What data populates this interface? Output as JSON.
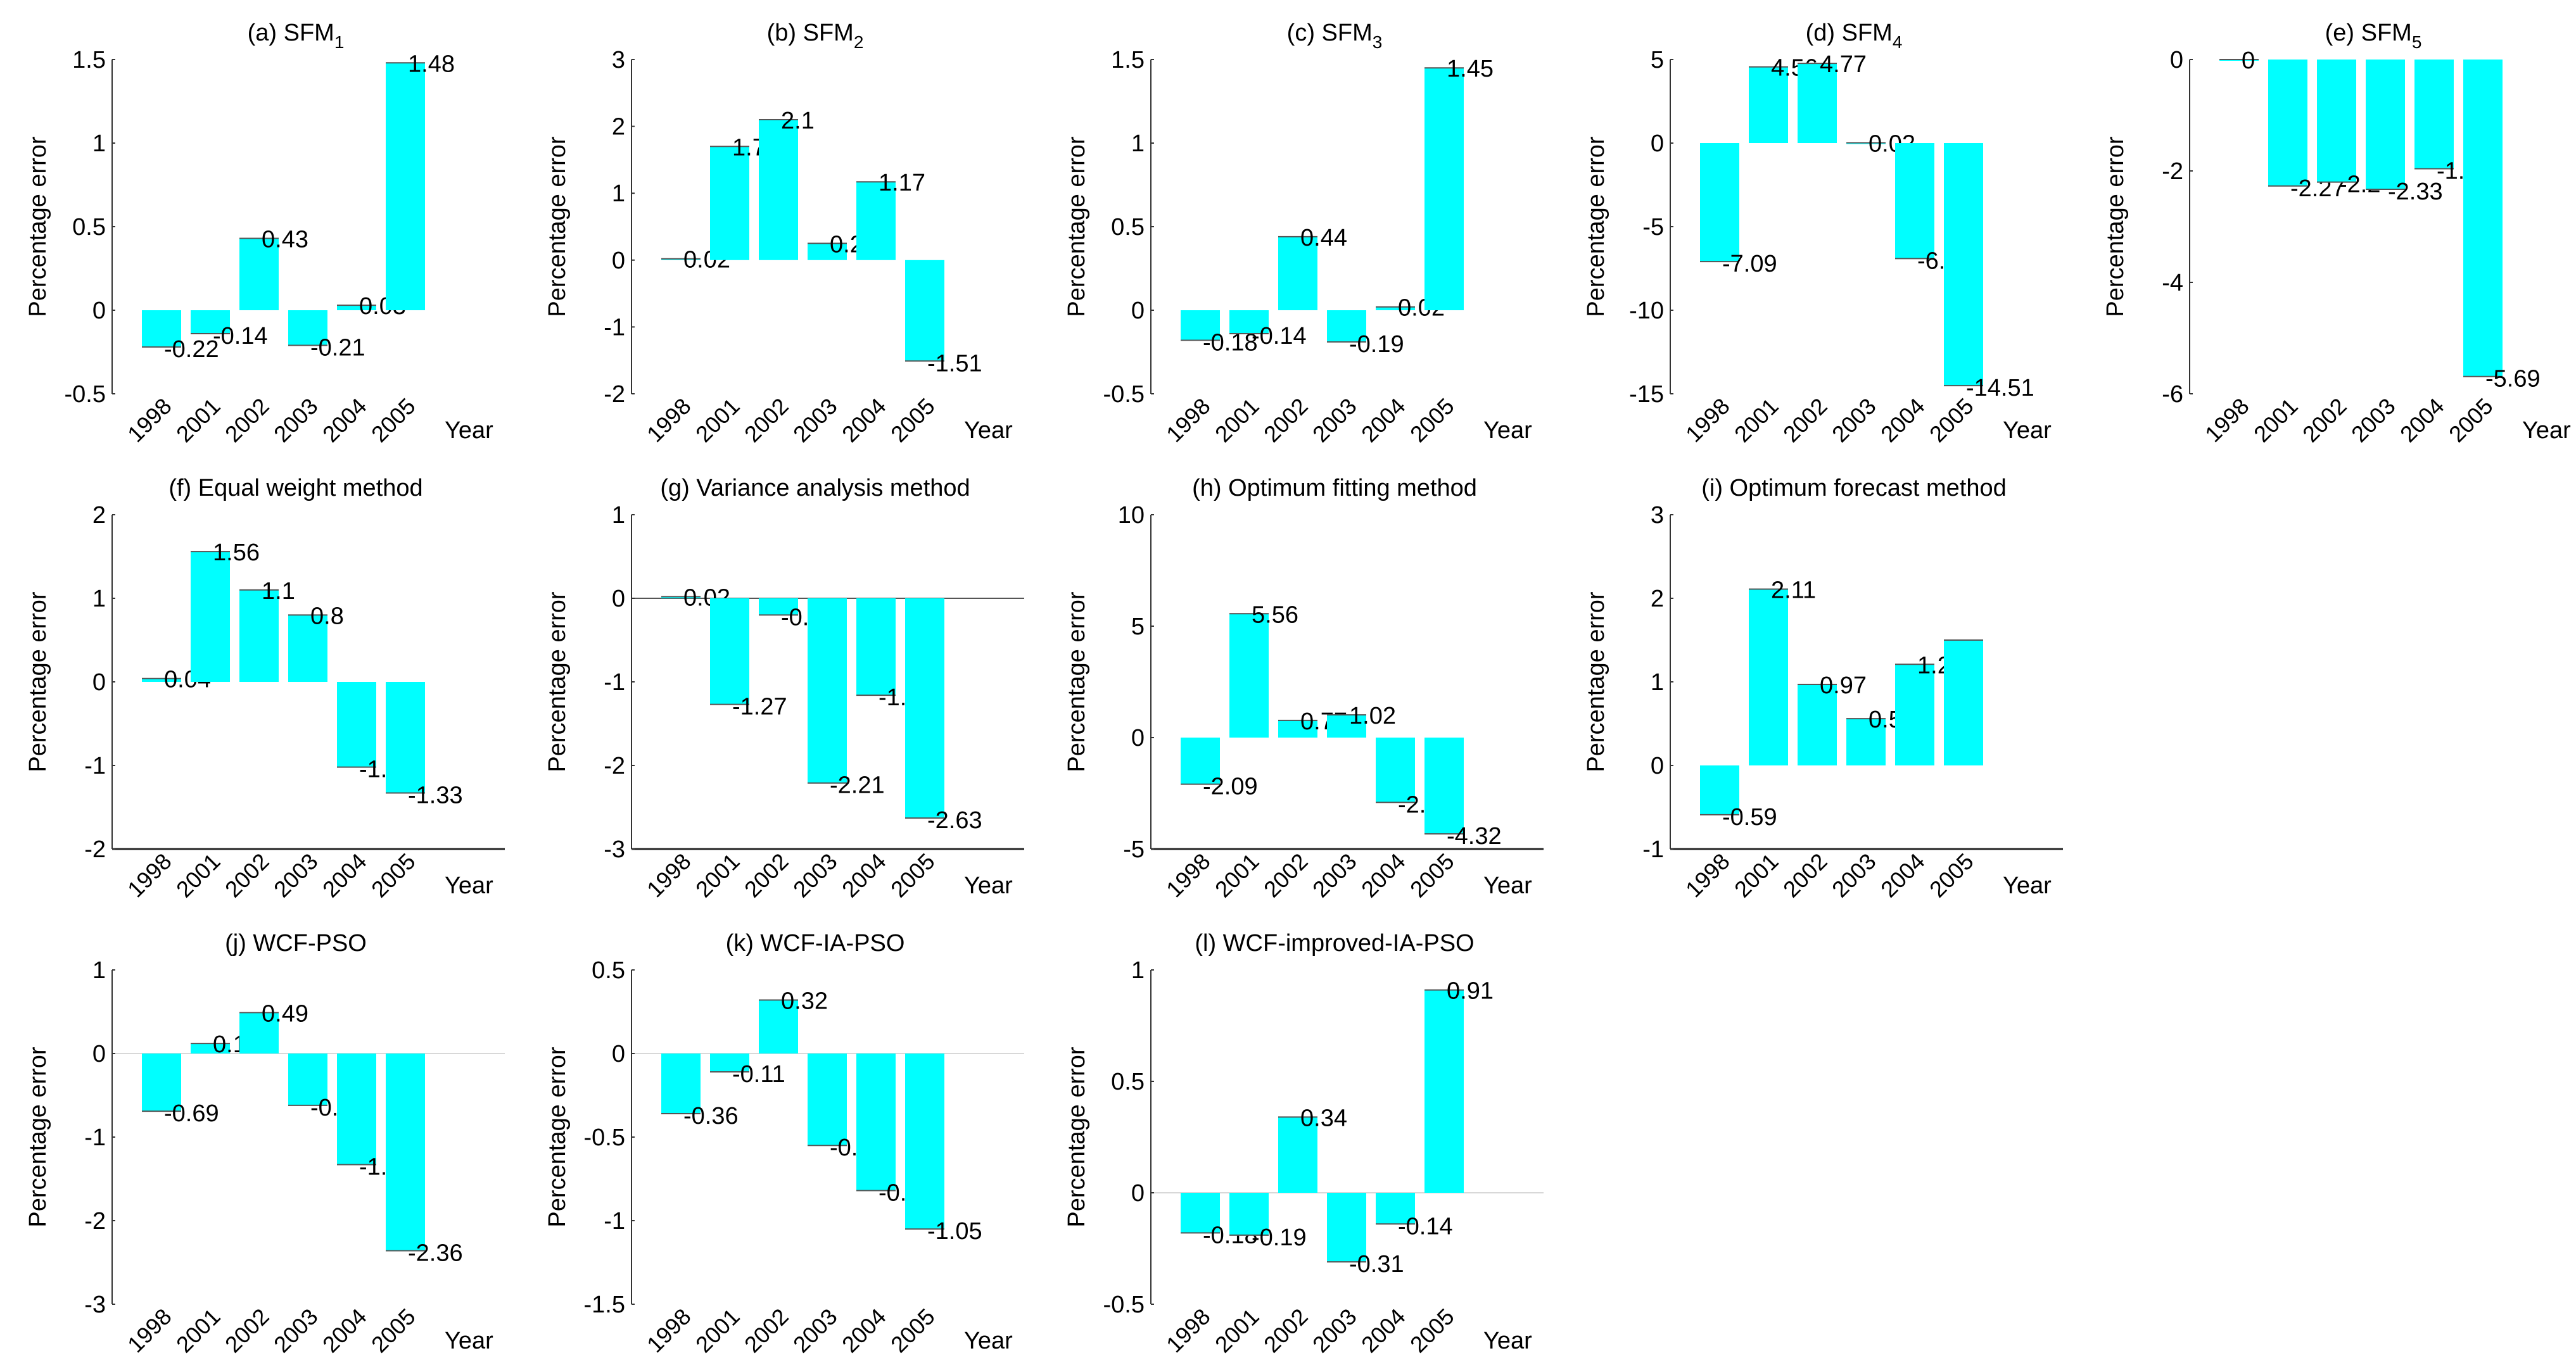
{
  "figure": {
    "bar_color": "#00FFFF",
    "edge_color": "#000000",
    "axis_color": "#333333"
  },
  "chart_data": [
    {
      "id": "a",
      "type": "bar",
      "title": "(a) SFM",
      "title_sub": "1",
      "xlabel": "Year",
      "ylabel": "Percentage error",
      "categories": [
        "1998",
        "2001",
        "2002",
        "2003",
        "2004",
        "2005"
      ],
      "values": [
        -0.22,
        -0.14,
        0.43,
        -0.21,
        0.03,
        1.48
      ],
      "labels": [
        "-0.22",
        "-0.14",
        "0.43",
        "-0.21",
        "0.03",
        "1.48"
      ],
      "ylim": [
        -0.5,
        1.5
      ],
      "yticks": [
        -0.5,
        0,
        0.5,
        1,
        1.5
      ],
      "ytick_labels": [
        "-0.5",
        "0",
        "0.5",
        "1",
        "1.5"
      ],
      "zero_line": false,
      "bottom_axis": false
    },
    {
      "id": "b",
      "type": "bar",
      "title": "(b) SFM",
      "title_sub": "2",
      "xlabel": "Year",
      "ylabel": "Percentage error",
      "categories": [
        "1998",
        "2001",
        "2002",
        "2003",
        "2004",
        "2005"
      ],
      "values": [
        0.02,
        1.7,
        2.1,
        0.25,
        1.17,
        -1.51
      ],
      "labels": [
        "0.02",
        "1.7",
        "2.1",
        "0.25",
        "1.17",
        "-1.51"
      ],
      "ylim": [
        -2,
        3
      ],
      "yticks": [
        -2,
        -1,
        0,
        1,
        2,
        3
      ],
      "ytick_labels": [
        "-2",
        "-1",
        "0",
        "1",
        "2",
        "3"
      ],
      "zero_line": false,
      "bottom_axis": false
    },
    {
      "id": "c",
      "type": "bar",
      "title": "(c) SFM",
      "title_sub": "3",
      "xlabel": "Year",
      "ylabel": "Percentage error",
      "categories": [
        "1998",
        "2001",
        "2002",
        "2003",
        "2004",
        "2005"
      ],
      "values": [
        -0.18,
        -0.14,
        0.44,
        -0.19,
        0.02,
        1.45
      ],
      "labels": [
        "-0.18",
        "-0.14",
        "0.44",
        "-0.19",
        "0.02",
        "1.45"
      ],
      "ylim": [
        -0.5,
        1.5
      ],
      "yticks": [
        -0.5,
        0,
        0.5,
        1,
        1.5
      ],
      "ytick_labels": [
        "-0.5",
        "0",
        "0.5",
        "1",
        "1.5"
      ],
      "zero_line": false,
      "bottom_axis": false
    },
    {
      "id": "d",
      "type": "bar",
      "title": "(d) SFM",
      "title_sub": "4",
      "xlabel": "Year",
      "ylabel": "Percentage error",
      "categories": [
        "1998",
        "2001",
        "2002",
        "2003",
        "2004",
        "2005"
      ],
      "values": [
        -7.09,
        4.56,
        4.77,
        0.02,
        -6.91,
        -14.51
      ],
      "labels": [
        "-7.09",
        "4.56",
        "4.77",
        "0.02",
        "-6.91",
        "-14.51"
      ],
      "ylim": [
        -15,
        5
      ],
      "yticks": [
        -15,
        -10,
        -5,
        0,
        5
      ],
      "ytick_labels": [
        "-15",
        "-10",
        "-5",
        "0",
        "5"
      ],
      "zero_line": false,
      "bottom_axis": false
    },
    {
      "id": "e",
      "type": "bar",
      "title": "(e) SFM",
      "title_sub": "5",
      "xlabel": "Year",
      "ylabel": "Percentage error",
      "categories": [
        "1998",
        "2001",
        "2002",
        "2003",
        "2004",
        "2005"
      ],
      "values": [
        0,
        -2.27,
        -2.2,
        -2.33,
        -1.96,
        -5.69
      ],
      "labels": [
        "0",
        "-2.27",
        "-2.2",
        "-2.33",
        "-1.96",
        "-5.69"
      ],
      "ylim": [
        -6,
        0
      ],
      "yticks": [
        -6,
        -4,
        -2,
        0
      ],
      "ytick_labels": [
        "-6",
        "-4",
        "-2",
        "0"
      ],
      "zero_line": false,
      "bottom_axis": false
    },
    {
      "id": "f",
      "type": "bar",
      "title": "(f) Equal weight method",
      "title_sub": "",
      "xlabel": "Year",
      "ylabel": "Percentage error",
      "categories": [
        "1998",
        "2001",
        "2002",
        "2003",
        "2004",
        "2005"
      ],
      "values": [
        0.04,
        1.56,
        1.1,
        0.8,
        -1.02,
        -1.33
      ],
      "labels": [
        "0.04",
        "1.56",
        "1.1",
        "0.8",
        "-1.02",
        "-1.33"
      ],
      "ylim": [
        -2,
        2
      ],
      "yticks": [
        -2,
        -1,
        0,
        1,
        2
      ],
      "ytick_labels": [
        "-2",
        "-1",
        "0",
        "1",
        "2"
      ],
      "zero_line": false,
      "bottom_axis": true
    },
    {
      "id": "g",
      "type": "bar",
      "title": "(g) Variance analysis method",
      "title_sub": "",
      "xlabel": "Year",
      "ylabel": "Percentage error",
      "categories": [
        "1998",
        "2001",
        "2002",
        "2003",
        "2004",
        "2005"
      ],
      "values": [
        0.02,
        -1.27,
        -0.2,
        -2.21,
        -1.16,
        -2.63
      ],
      "labels": [
        "0.02",
        "-1.27",
        "-0.2",
        "-2.21",
        "-1.16",
        "-2.63"
      ],
      "ylim": [
        -3,
        1
      ],
      "yticks": [
        -3,
        -2,
        -1,
        0,
        1
      ],
      "ytick_labels": [
        "-3",
        "-2",
        "-1",
        "0",
        "1"
      ],
      "zero_line": true,
      "bottom_axis": true
    },
    {
      "id": "h",
      "type": "bar",
      "title": "(h) Optimum fitting method",
      "title_sub": "",
      "xlabel": "Year",
      "ylabel": "Percentage error",
      "categories": [
        "1998",
        "2001",
        "2002",
        "2003",
        "2004",
        "2005"
      ],
      "values": [
        -2.09,
        5.56,
        0.77,
        1.02,
        -2.91,
        -4.32
      ],
      "labels": [
        "-2.09",
        "5.56",
        "0.77",
        "1.02",
        "-2.91",
        "-4.32"
      ],
      "ylim": [
        -5,
        10
      ],
      "yticks": [
        -5,
        0,
        5,
        10
      ],
      "ytick_labels": [
        "-5",
        "0",
        "5",
        "10"
      ],
      "zero_line": false,
      "bottom_axis": true
    },
    {
      "id": "i",
      "type": "bar",
      "title": "(i) Optimum forecast method",
      "title_sub": "",
      "xlabel": "Year",
      "ylabel": "Percentage error",
      "categories": [
        "1998",
        "2001",
        "2002",
        "2003",
        "2004",
        "2005"
      ],
      "values": [
        -0.59,
        2.11,
        0.97,
        0.56,
        1.21,
        1.5
      ],
      "labels": [
        "-0.59",
        "2.11",
        "0.97",
        "0.56",
        "1.21",
        ""
      ],
      "ylim": [
        -1,
        3
      ],
      "yticks": [
        -1,
        0,
        1,
        2,
        3
      ],
      "ytick_labels": [
        "-1",
        "0",
        "1",
        "2",
        "3"
      ],
      "zero_line": false,
      "bottom_axis": true
    },
    {
      "id": "j",
      "type": "bar",
      "title": "(j) WCF-PSO",
      "title_sub": "",
      "xlabel": "Year",
      "ylabel": "Percentage error",
      "categories": [
        "1998",
        "2001",
        "2002",
        "2003",
        "2004",
        "2005"
      ],
      "values": [
        -0.69,
        0.12,
        0.49,
        -0.62,
        -1.33,
        -2.36
      ],
      "labels": [
        "-0.69",
        "0.12",
        "0.49",
        "-0.62",
        "-1.33",
        "-2.36"
      ],
      "ylim": [
        -3,
        1
      ],
      "yticks": [
        -3,
        -2,
        -1,
        0,
        1
      ],
      "ytick_labels": [
        "-3",
        "-2",
        "-1",
        "0",
        "1"
      ],
      "zero_line": true,
      "bottom_axis": false
    },
    {
      "id": "k",
      "type": "bar",
      "title": "(k) WCF-IA-PSO",
      "title_sub": "",
      "xlabel": "Year",
      "ylabel": "Percentage error",
      "categories": [
        "1998",
        "2001",
        "2002",
        "2003",
        "2004",
        "2005"
      ],
      "values": [
        -0.36,
        -0.11,
        0.32,
        -0.55,
        -0.82,
        -1.05
      ],
      "labels": [
        "-0.36",
        "-0.11",
        "0.32",
        "-0.55",
        "-0.82",
        "-1.05"
      ],
      "ylim": [
        -1.5,
        0.5
      ],
      "yticks": [
        -1.5,
        -1,
        -0.5,
        0,
        0.5
      ],
      "ytick_labels": [
        "-1.5",
        "-1",
        "-0.5",
        "0",
        "0.5"
      ],
      "zero_line": true,
      "bottom_axis": false
    },
    {
      "id": "l",
      "type": "bar",
      "title": "(l) WCF-improved-IA-PSO",
      "title_sub": "",
      "xlabel": "Year",
      "ylabel": "Percentage error",
      "categories": [
        "1998",
        "2001",
        "2002",
        "2003",
        "2004",
        "2005"
      ],
      "values": [
        -0.18,
        -0.19,
        0.34,
        -0.31,
        -0.14,
        0.91
      ],
      "labels": [
        "-0.18",
        "-0.19",
        "0.34",
        "-0.31",
        "-0.14",
        "0.91"
      ],
      "ylim": [
        -0.5,
        1
      ],
      "yticks": [
        -0.5,
        0,
        0.5,
        1
      ],
      "ytick_labels": [
        "-0.5",
        "0",
        "0.5",
        "1"
      ],
      "zero_line": true,
      "bottom_axis": false
    }
  ]
}
